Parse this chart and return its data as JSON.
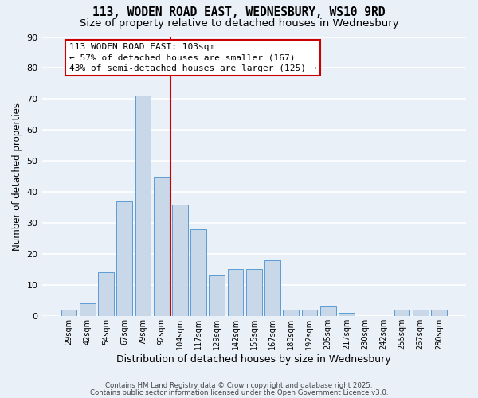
{
  "title1": "113, WODEN ROAD EAST, WEDNESBURY, WS10 9RD",
  "title2": "Size of property relative to detached houses in Wednesbury",
  "xlabel": "Distribution of detached houses by size in Wednesbury",
  "ylabel": "Number of detached properties",
  "categories": [
    "29sqm",
    "42sqm",
    "54sqm",
    "67sqm",
    "79sqm",
    "92sqm",
    "104sqm",
    "117sqm",
    "129sqm",
    "142sqm",
    "155sqm",
    "167sqm",
    "180sqm",
    "192sqm",
    "205sqm",
    "217sqm",
    "230sqm",
    "242sqm",
    "255sqm",
    "267sqm",
    "280sqm"
  ],
  "values": [
    2,
    4,
    14,
    37,
    71,
    45,
    36,
    28,
    13,
    15,
    15,
    18,
    2,
    2,
    3,
    1,
    0,
    0,
    2,
    2,
    2
  ],
  "bar_color": "#c8d8e8",
  "bar_edge_color": "#5b9bd5",
  "annotation_text": "113 WODEN ROAD EAST: 103sqm\n← 57% of detached houses are smaller (167)\n43% of semi-detached houses are larger (125) →",
  "annotation_box_color": "white",
  "annotation_box_edge_color": "red",
  "background_color": "#eaf0f8",
  "plot_bg_color": "#eaf0f8",
  "grid_color": "white",
  "ylim": [
    0,
    90
  ],
  "yticks": [
    0,
    10,
    20,
    30,
    40,
    50,
    60,
    70,
    80,
    90
  ],
  "vline_x": 6.0,
  "footer1": "Contains HM Land Registry data © Crown copyright and database right 2025.",
  "footer2": "Contains public sector information licensed under the Open Government Licence v3.0.",
  "title1_fontsize": 10.5,
  "title2_fontsize": 9.5,
  "xlabel_fontsize": 9,
  "ylabel_fontsize": 8.5,
  "annotation_fontsize": 8
}
